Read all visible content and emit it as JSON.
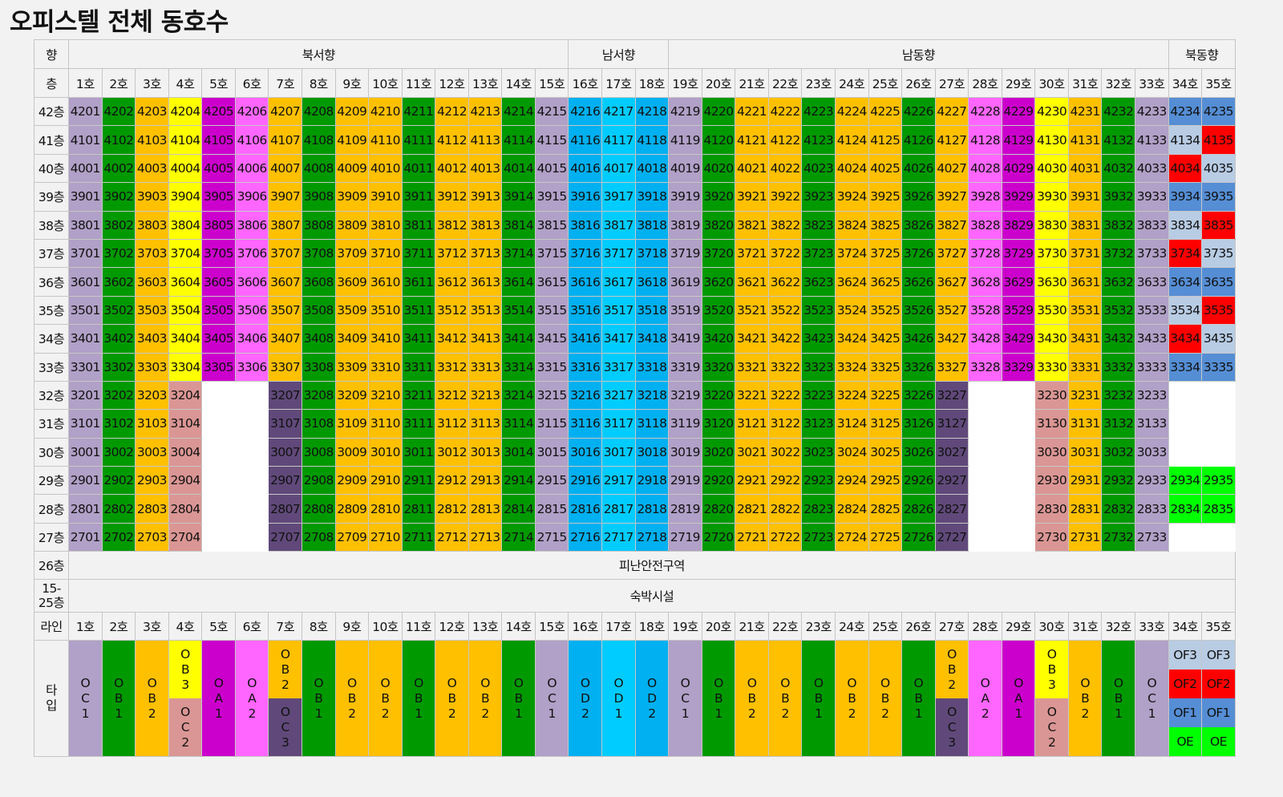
{
  "title": "오피스텔 전체 동호수",
  "colors": {
    "A": "#B1A0C7",
    "G": "#009900",
    "O": "#FFC000",
    "Y": "#FFFF00",
    "M": "#CC00CC",
    "P": "#FF66FF",
    "D": "#60497A",
    "S": "#DA9694",
    "B": "#00B0F0",
    "C": "#00CCFF",
    "U": "#558ED5",
    "L": "#B8CCE4",
    "R": "#FF0000",
    "E": "#00FF00",
    "W": "#FFFFFF"
  },
  "header": {
    "direction_label": "향",
    "floor_label": "층",
    "directions": [
      {
        "label": "북서향",
        "span": 15
      },
      {
        "label": "남서향",
        "span": 3
      },
      {
        "label": "남동향",
        "span": 15
      },
      {
        "label": "북동향",
        "span": 2
      }
    ],
    "units": [
      "1호",
      "2호",
      "3호",
      "4호",
      "5호",
      "6호",
      "7호",
      "8호",
      "9호",
      "10호",
      "11호",
      "12호",
      "13호",
      "14호",
      "15호",
      "16호",
      "17호",
      "18호",
      "19호",
      "20호",
      "21호",
      "22호",
      "23호",
      "24호",
      "25호",
      "26호",
      "27호",
      "28호",
      "29호",
      "30호",
      "31호",
      "32호",
      "33호",
      "34호",
      "35호"
    ]
  },
  "upper_pattern": "AGOYMPOGOOGOOGABCBAGOOGOOGOPMYOGA",
  "lower_pattern": "AGOSWWDGOOGOOGABCBAGOOGOOGDWWSOGA",
  "floors": [
    {
      "label": "42층",
      "num": "42",
      "c34": "U",
      "c35": "U"
    },
    {
      "label": "41층",
      "num": "41",
      "c34": "L",
      "c35": "R"
    },
    {
      "label": "40층",
      "num": "40",
      "c34": "R",
      "c35": "L"
    },
    {
      "label": "39층",
      "num": "39",
      "c34": "U",
      "c35": "U"
    },
    {
      "label": "38층",
      "num": "38",
      "c34": "L",
      "c35": "R"
    },
    {
      "label": "37층",
      "num": "37",
      "c34": "R",
      "c35": "L"
    },
    {
      "label": "36층",
      "num": "36",
      "c34": "U",
      "c35": "U"
    },
    {
      "label": "35층",
      "num": "35",
      "c34": "L",
      "c35": "R"
    },
    {
      "label": "34층",
      "num": "34",
      "c34": "R",
      "c35": "L"
    },
    {
      "label": "33층",
      "num": "33",
      "c34": "U",
      "c35": "U"
    },
    {
      "label": "32층",
      "num": "32",
      "c34": "W",
      "c35": "W"
    },
    {
      "label": "31층",
      "num": "31",
      "c34": "W",
      "c35": "W"
    },
    {
      "label": "30층",
      "num": "30",
      "c34": "W",
      "c35": "W"
    },
    {
      "label": "29층",
      "num": "29",
      "c34": "E",
      "c35": "E"
    },
    {
      "label": "28층",
      "num": "28",
      "c34": "E",
      "c35": "E"
    },
    {
      "label": "27층",
      "num": "27",
      "c34": "W",
      "c35": "W"
    }
  ],
  "refuge_row": {
    "label": "26층",
    "text": "피난안전구역"
  },
  "lodging_row": {
    "label_line1": "15-",
    "label_line2": "25층",
    "text": "숙박시설"
  },
  "line_row": {
    "label": "라인"
  },
  "type_row": {
    "label": "타입",
    "cells": [
      {
        "kind": "one",
        "top": "OC1",
        "c": "A"
      },
      {
        "kind": "one",
        "top": "OB1",
        "c": "G"
      },
      {
        "kind": "one",
        "top": "OB2",
        "c": "O"
      },
      {
        "kind": "two",
        "top": "OB3",
        "c": "Y",
        "bottom": "OC2",
        "c2": "S"
      },
      {
        "kind": "one",
        "top": "OA1",
        "c": "M"
      },
      {
        "kind": "one",
        "top": "OA2",
        "c": "P"
      },
      {
        "kind": "two",
        "top": "OB2",
        "c": "O",
        "bottom": "OC3",
        "c2": "D"
      },
      {
        "kind": "one",
        "top": "OB1",
        "c": "G"
      },
      {
        "kind": "one",
        "top": "OB2",
        "c": "O"
      },
      {
        "kind": "one",
        "top": "OB2",
        "c": "O"
      },
      {
        "kind": "one",
        "top": "OB1",
        "c": "G"
      },
      {
        "kind": "one",
        "top": "OB2",
        "c": "O"
      },
      {
        "kind": "one",
        "top": "OB2",
        "c": "O"
      },
      {
        "kind": "one",
        "top": "OB1",
        "c": "G"
      },
      {
        "kind": "one",
        "top": "OC1",
        "c": "A"
      },
      {
        "kind": "one",
        "top": "OD2",
        "c": "B"
      },
      {
        "kind": "one",
        "top": "OD1",
        "c": "C"
      },
      {
        "kind": "one",
        "top": "OD2",
        "c": "B"
      },
      {
        "kind": "one",
        "top": "OC1",
        "c": "A"
      },
      {
        "kind": "one",
        "top": "OB1",
        "c": "G"
      },
      {
        "kind": "one",
        "top": "OB2",
        "c": "O"
      },
      {
        "kind": "one",
        "top": "OB2",
        "c": "O"
      },
      {
        "kind": "one",
        "top": "OB1",
        "c": "G"
      },
      {
        "kind": "one",
        "top": "OB2",
        "c": "O"
      },
      {
        "kind": "one",
        "top": "OB2",
        "c": "O"
      },
      {
        "kind": "one",
        "top": "OB1",
        "c": "G"
      },
      {
        "kind": "two",
        "top": "OB2",
        "c": "O",
        "bottom": "OC3",
        "c2": "D"
      },
      {
        "kind": "one",
        "top": "OA2",
        "c": "P"
      },
      {
        "kind": "one",
        "top": "OA1",
        "c": "M"
      },
      {
        "kind": "two",
        "top": "OB3",
        "c": "Y",
        "bottom": "OC2",
        "c2": "S"
      },
      {
        "kind": "one",
        "top": "OB2",
        "c": "O"
      },
      {
        "kind": "one",
        "top": "OB1",
        "c": "G"
      },
      {
        "kind": "one",
        "top": "OC1",
        "c": "A"
      },
      {
        "kind": "four",
        "items": [
          {
            "t": "OF3",
            "c": "L"
          },
          {
            "t": "OF2",
            "c": "R"
          },
          {
            "t": "OF1",
            "c": "U"
          },
          {
            "t": "OE",
            "c": "E"
          }
        ]
      },
      {
        "kind": "four",
        "items": [
          {
            "t": "OF3",
            "c": "L"
          },
          {
            "t": "OF2",
            "c": "R"
          },
          {
            "t": "OF1",
            "c": "U"
          },
          {
            "t": "OE",
            "c": "E"
          }
        ]
      }
    ]
  }
}
